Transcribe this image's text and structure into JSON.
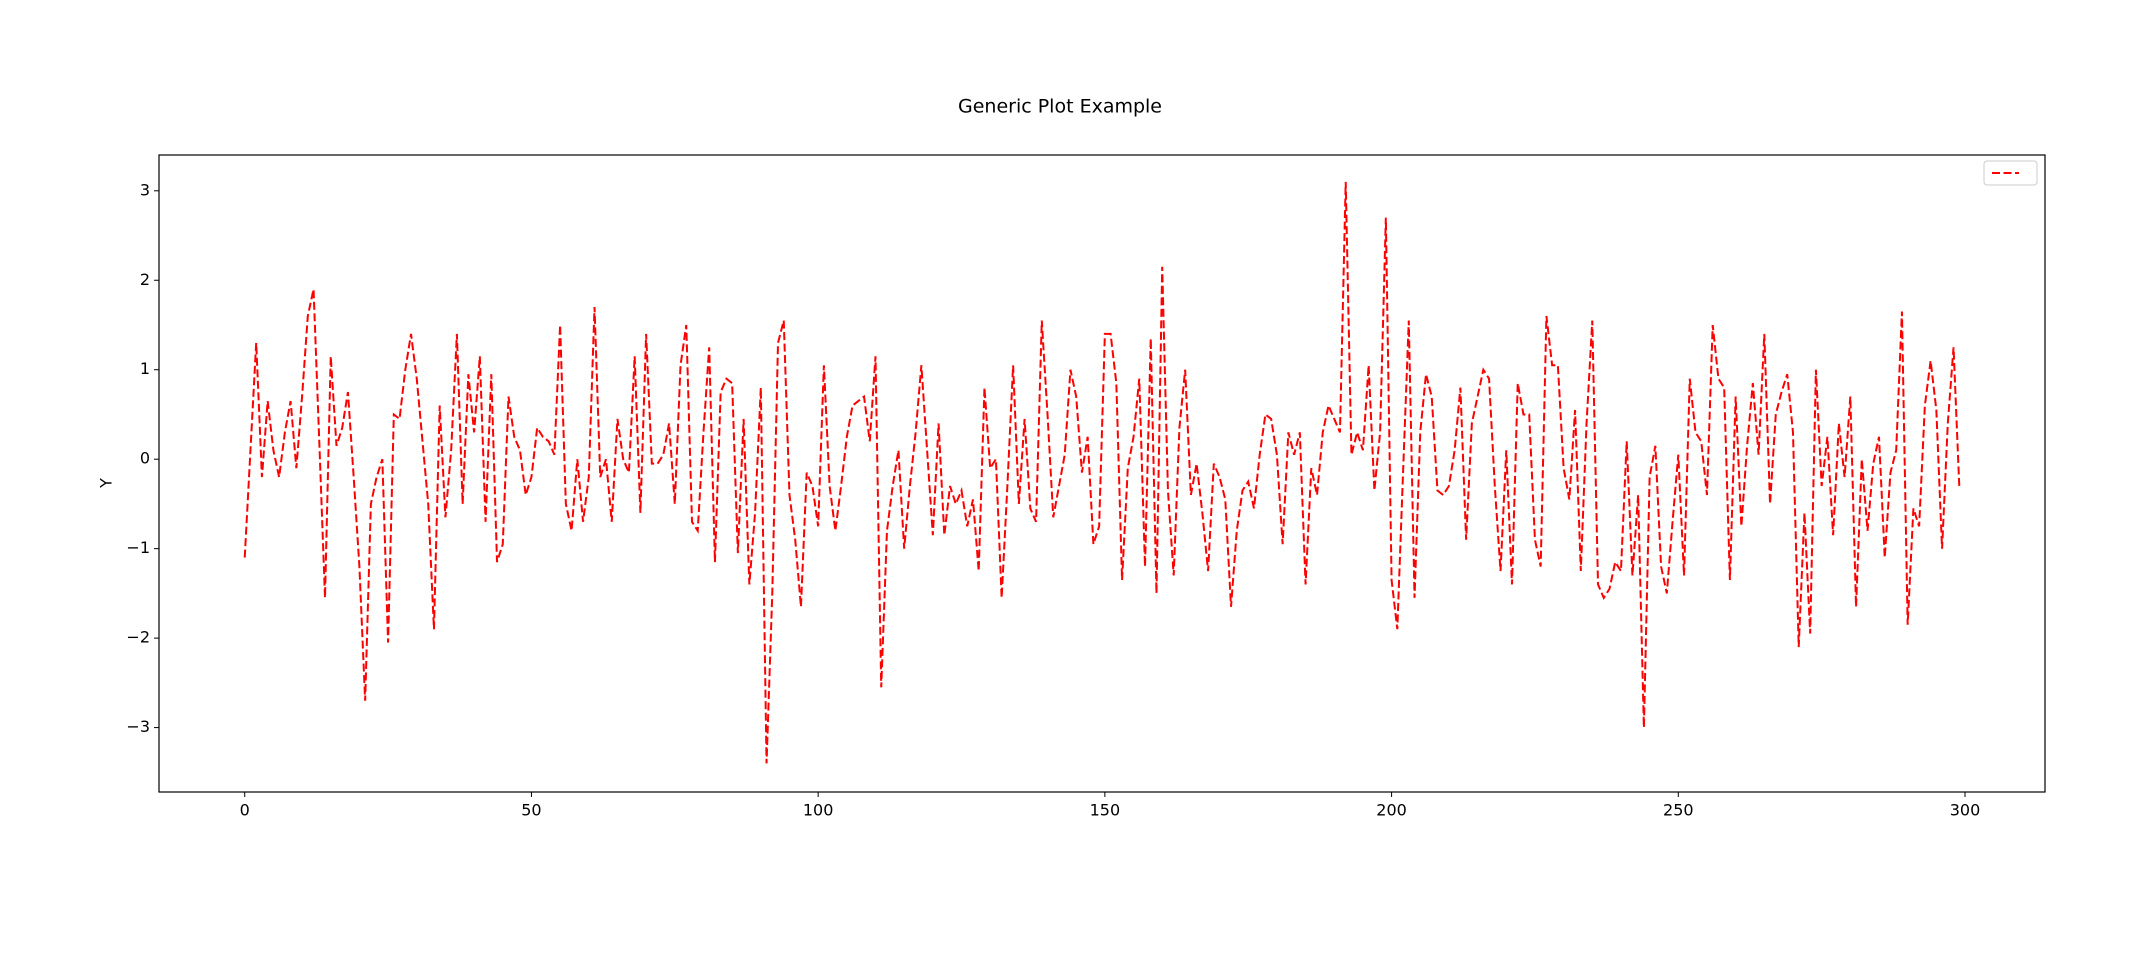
{
  "chart_data": {
    "type": "line",
    "title": "Generic Plot Example",
    "y_label": "Y",
    "legend": "upper right",
    "x": [
      0,
      1,
      2,
      3,
      4,
      5,
      6,
      7,
      8,
      9,
      10,
      11,
      12,
      13,
      14,
      15,
      16,
      17,
      18,
      19,
      20,
      21,
      22,
      23,
      24,
      25,
      26,
      27,
      28,
      29,
      30,
      31,
      32,
      33,
      34,
      35,
      36,
      37,
      38,
      39,
      40,
      41,
      42,
      43,
      44,
      45,
      46,
      47,
      48,
      49,
      50,
      51,
      52,
      53,
      54,
      55,
      56,
      57,
      58,
      59,
      60,
      61,
      62,
      63,
      64,
      65,
      66,
      67,
      68,
      69,
      70,
      71,
      72,
      73,
      74,
      75,
      76,
      77,
      78,
      79,
      80,
      81,
      82,
      83,
      84,
      85,
      86,
      87,
      88,
      89,
      90,
      91,
      92,
      93,
      94,
      95,
      96,
      97,
      98,
      99,
      100,
      101,
      102,
      103,
      104,
      105,
      106,
      107,
      108,
      109,
      110,
      111,
      112,
      113,
      114,
      115,
      116,
      117,
      118,
      119,
      120,
      121,
      122,
      123,
      124,
      125,
      126,
      127,
      128,
      129,
      130,
      131,
      132,
      133,
      134,
      135,
      136,
      137,
      138,
      139,
      140,
      141,
      142,
      143,
      144,
      145,
      146,
      147,
      148,
      149,
      150,
      151,
      152,
      153,
      154,
      155,
      156,
      157,
      158,
      159,
      160,
      161,
      162,
      163,
      164,
      165,
      166,
      167,
      168,
      169,
      170,
      171,
      172,
      173,
      174,
      175,
      176,
      177,
      178,
      179,
      180,
      181,
      182,
      183,
      184,
      185,
      186,
      187,
      188,
      189,
      190,
      191,
      192,
      193,
      194,
      195,
      196,
      197,
      198,
      199,
      200,
      201,
      202,
      203,
      204,
      205,
      206,
      207,
      208,
      209,
      210,
      211,
      212,
      213,
      214,
      215,
      216,
      217,
      218,
      219,
      220,
      221,
      222,
      223,
      224,
      225,
      226,
      227,
      228,
      229,
      230,
      231,
      232,
      233,
      234,
      235,
      236,
      237,
      238,
      239,
      240,
      241,
      242,
      243,
      244,
      245,
      246,
      247,
      248,
      249,
      250,
      251,
      252,
      253,
      254,
      255,
      256,
      257,
      258,
      259,
      260,
      261,
      262,
      263,
      264,
      265,
      266,
      267,
      268,
      269,
      270,
      271,
      272,
      273,
      274,
      275,
      276,
      277,
      278,
      279,
      280,
      281,
      282,
      283,
      284,
      285,
      286,
      287,
      288,
      289,
      290,
      291,
      292,
      293,
      294,
      295,
      296,
      297,
      298,
      299
    ],
    "series": [
      {
        "color": "#ff0000",
        "line_style": "dashed",
        "values": [
          -1.1,
          0.1,
          1.3,
          -0.2,
          0.65,
          0.1,
          -0.2,
          0.3,
          0.65,
          -0.1,
          0.7,
          1.6,
          1.9,
          0.2,
          -1.55,
          1.15,
          0.15,
          0.35,
          0.75,
          -0.2,
          -1.2,
          -2.7,
          -0.5,
          -0.2,
          0.0,
          -2.05,
          0.5,
          0.45,
          1.0,
          1.4,
          0.9,
          0.2,
          -0.5,
          -1.9,
          0.6,
          -0.65,
          0.1,
          1.4,
          -0.5,
          0.95,
          0.3,
          1.15,
          -0.7,
          0.95,
          -1.15,
          -0.95,
          0.7,
          0.25,
          0.1,
          -0.4,
          -0.2,
          0.35,
          0.25,
          0.2,
          0.05,
          1.5,
          -0.5,
          -0.8,
          0.0,
          -0.7,
          -0.2,
          1.7,
          -0.2,
          0.0,
          -0.7,
          0.45,
          0.0,
          -0.15,
          1.15,
          -0.6,
          1.4,
          -0.05,
          -0.05,
          0.05,
          0.4,
          -0.5,
          1.05,
          1.5,
          -0.7,
          -0.8,
          0.3,
          1.25,
          -1.15,
          0.75,
          0.9,
          0.85,
          -1.05,
          0.45,
          -1.4,
          -0.6,
          0.8,
          -3.4,
          -1.5,
          1.3,
          1.55,
          -0.4,
          -0.9,
          -1.65,
          -0.15,
          -0.3,
          -0.75,
          1.05,
          -0.3,
          -0.8,
          -0.3,
          0.25,
          0.6,
          0.65,
          0.7,
          0.2,
          1.15,
          -2.55,
          -0.8,
          -0.3,
          0.1,
          -1.0,
          -0.3,
          0.3,
          1.05,
          0.1,
          -0.85,
          0.4,
          -0.85,
          -0.3,
          -0.5,
          -0.35,
          -0.75,
          -0.45,
          -1.25,
          0.8,
          -0.1,
          0.0,
          -1.55,
          -0.3,
          1.05,
          -0.5,
          0.45,
          -0.55,
          -0.7,
          1.55,
          0.5,
          -0.65,
          -0.3,
          0.05,
          1.0,
          0.7,
          -0.15,
          0.25,
          -0.95,
          -0.75,
          1.4,
          1.4,
          0.85,
          -1.35,
          -0.1,
          0.25,
          0.9,
          -1.2,
          1.35,
          -1.5,
          2.15,
          -0.35,
          -1.3,
          0.35,
          1.0,
          -0.4,
          -0.05,
          -0.6,
          -1.25,
          -0.05,
          -0.2,
          -0.45,
          -1.65,
          -0.8,
          -0.35,
          -0.25,
          -0.55,
          0.05,
          0.5,
          0.45,
          0.05,
          -0.95,
          0.3,
          0.05,
          0.3,
          -1.4,
          -0.1,
          -0.4,
          0.3,
          0.6,
          0.45,
          0.3,
          3.1,
          0.05,
          0.3,
          0.1,
          1.05,
          -0.35,
          0.3,
          2.7,
          -1.35,
          -1.9,
          -0.15,
          1.55,
          -1.55,
          0.3,
          0.95,
          0.7,
          -0.35,
          -0.4,
          -0.3,
          0.1,
          0.8,
          -0.9,
          0.4,
          0.7,
          1.0,
          0.9,
          -0.3,
          -1.25,
          0.1,
          -1.4,
          0.85,
          0.5,
          0.5,
          -0.9,
          -1.2,
          1.6,
          1.05,
          1.05,
          -0.1,
          -0.45,
          0.55,
          -1.25,
          0.4,
          1.55,
          -1.4,
          -1.55,
          -1.45,
          -1.15,
          -1.25,
          0.2,
          -1.3,
          -0.4,
          -3.0,
          -0.2,
          0.15,
          -1.2,
          -1.5,
          -0.7,
          0.05,
          -1.3,
          0.9,
          0.3,
          0.2,
          -0.4,
          1.5,
          0.9,
          0.8,
          -1.35,
          0.7,
          -0.75,
          0.15,
          0.85,
          0.05,
          1.4,
          -0.5,
          0.5,
          0.75,
          0.95,
          0.3,
          -2.1,
          -0.6,
          -1.95,
          1.0,
          -0.3,
          0.25,
          -0.85,
          0.4,
          -0.2,
          0.7,
          -1.65,
          0.0,
          -0.8,
          -0.05,
          0.25,
          -1.1,
          -0.15,
          0.1,
          1.65,
          -1.85,
          -0.55,
          -0.75,
          0.6,
          1.1,
          0.55,
          -1.0,
          0.4,
          1.25,
          -0.3
        ]
      }
    ],
    "xlim": [
      -14.95,
      313.95
    ],
    "xticks": [
      0,
      50,
      100,
      150,
      200,
      250,
      300
    ],
    "ylim": [
      -3.72,
      3.4
    ],
    "yticks": [
      {
        "value": -3,
        "label": "−3"
      },
      {
        "value": -2,
        "label": "−2"
      },
      {
        "value": -1,
        "label": "−1"
      },
      0,
      1,
      2,
      3
    ]
  }
}
